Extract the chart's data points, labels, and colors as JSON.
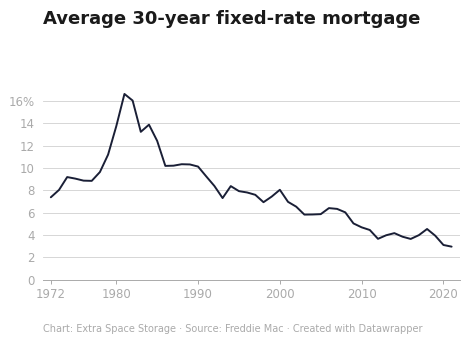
{
  "title": "Average 30-year fixed-rate mortgage",
  "caption": "Chart: Extra Space Storage · Source: Freddie Mac · Created with Datawrapper",
  "years": [
    1972,
    1973,
    1974,
    1975,
    1976,
    1977,
    1978,
    1979,
    1980,
    1981,
    1982,
    1983,
    1984,
    1985,
    1986,
    1987,
    1988,
    1989,
    1990,
    1991,
    1992,
    1993,
    1994,
    1995,
    1996,
    1997,
    1998,
    1999,
    2000,
    2001,
    2002,
    2003,
    2004,
    2005,
    2006,
    2007,
    2008,
    2009,
    2010,
    2011,
    2012,
    2013,
    2014,
    2015,
    2016,
    2017,
    2018,
    2019,
    2020,
    2021
  ],
  "rates": [
    7.38,
    8.04,
    9.19,
    9.05,
    8.87,
    8.85,
    9.64,
    11.2,
    13.74,
    16.63,
    16.04,
    13.24,
    13.88,
    12.43,
    10.19,
    10.21,
    10.34,
    10.32,
    10.13,
    9.25,
    8.39,
    7.31,
    8.38,
    7.93,
    7.81,
    7.6,
    6.94,
    7.44,
    8.05,
    6.97,
    6.54,
    5.83,
    5.84,
    5.87,
    6.41,
    6.34,
    6.03,
    5.04,
    4.69,
    4.45,
    3.66,
    3.98,
    4.17,
    3.85,
    3.65,
    3.99,
    4.54,
    3.94,
    3.11,
    2.96
  ],
  "xlim": [
    1971,
    2022
  ],
  "ylim": [
    0,
    17.5
  ],
  "ytick_values": [
    0,
    2,
    4,
    6,
    8,
    10,
    12,
    14,
    16
  ],
  "ytick_labels": [
    "0",
    "2",
    "4",
    "6",
    "8",
    "10",
    "12",
    "14",
    "16%"
  ],
  "xticks": [
    1972,
    1980,
    1990,
    2000,
    2010,
    2020
  ],
  "line_color": "#1a1f36",
  "line_width": 1.4,
  "background_color": "#ffffff",
  "grid_color": "#d0d0d0",
  "title_fontsize": 13,
  "caption_fontsize": 7.0,
  "tick_fontsize": 8.5,
  "tick_color": "#aaaaaa"
}
